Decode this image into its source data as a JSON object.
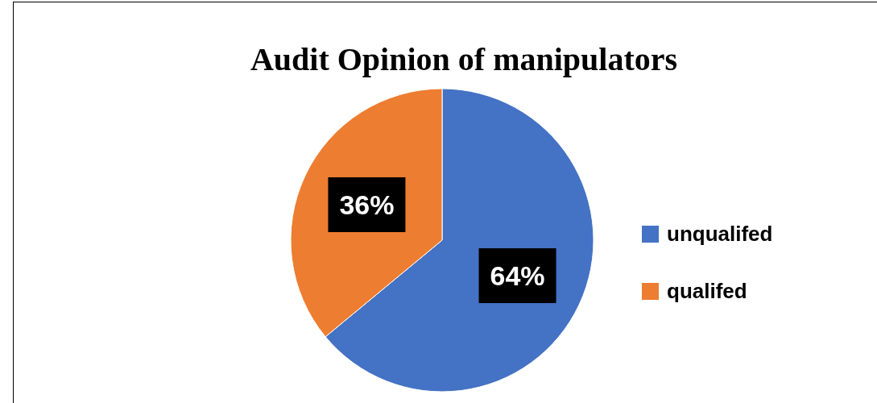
{
  "chart_data": {
    "type": "pie",
    "title": "Audit Opinion of manipulators",
    "categories": [
      "unqualifed",
      "qualifed"
    ],
    "values": [
      64,
      36
    ],
    "colors": [
      "#4472c4",
      "#ed7d31"
    ],
    "value_labels": [
      "64%",
      "36%"
    ],
    "legend": "right"
  }
}
